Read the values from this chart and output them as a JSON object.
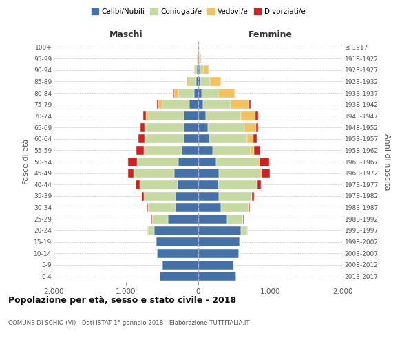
{
  "age_groups": [
    "0-4",
    "5-9",
    "10-14",
    "15-19",
    "20-24",
    "25-29",
    "30-34",
    "35-39",
    "40-44",
    "45-49",
    "50-54",
    "55-59",
    "60-64",
    "65-69",
    "70-74",
    "75-79",
    "80-84",
    "85-89",
    "90-94",
    "95-99",
    "100+"
  ],
  "birth_years": [
    "2013-2017",
    "2008-2012",
    "2003-2007",
    "1998-2002",
    "1993-1997",
    "1988-1992",
    "1983-1987",
    "1978-1982",
    "1973-1977",
    "1968-1972",
    "1963-1967",
    "1958-1962",
    "1953-1957",
    "1948-1952",
    "1943-1947",
    "1938-1942",
    "1933-1937",
    "1928-1932",
    "1923-1927",
    "1918-1922",
    "≤ 1917"
  ],
  "males": {
    "celibi": [
      530,
      500,
      570,
      580,
      610,
      420,
      310,
      310,
      290,
      330,
      280,
      230,
      200,
      200,
      200,
      120,
      60,
      30,
      15,
      5,
      2
    ],
    "coniugati": [
      2,
      2,
      5,
      10,
      90,
      220,
      380,
      440,
      520,
      560,
      560,
      510,
      530,
      520,
      490,
      380,
      220,
      100,
      30,
      8,
      1
    ],
    "vedovi": [
      0,
      0,
      0,
      0,
      2,
      2,
      2,
      2,
      3,
      5,
      5,
      10,
      10,
      20,
      30,
      50,
      50,
      30,
      10,
      2,
      0
    ],
    "divorziati": [
      0,
      0,
      0,
      2,
      5,
      10,
      15,
      30,
      50,
      80,
      130,
      110,
      90,
      60,
      40,
      20,
      10,
      3,
      2,
      0,
      0
    ]
  },
  "females": {
    "nubili": [
      520,
      490,
      560,
      570,
      590,
      400,
      310,
      290,
      280,
      290,
      250,
      200,
      150,
      130,
      100,
      70,
      50,
      30,
      15,
      5,
      2
    ],
    "coniugate": [
      2,
      2,
      5,
      10,
      90,
      220,
      390,
      450,
      530,
      570,
      570,
      520,
      530,
      510,
      490,
      380,
      230,
      130,
      60,
      15,
      2
    ],
    "vedove": [
      0,
      0,
      0,
      0,
      2,
      2,
      3,
      5,
      10,
      20,
      30,
      50,
      80,
      160,
      200,
      250,
      220,
      150,
      70,
      15,
      2
    ],
    "divorziate": [
      0,
      0,
      0,
      2,
      5,
      10,
      15,
      30,
      50,
      110,
      130,
      90,
      50,
      30,
      40,
      25,
      15,
      5,
      5,
      2,
      0
    ]
  },
  "colors": {
    "celibi": "#4472a8",
    "coniugati": "#c5d9a0",
    "vedovi": "#f5c060",
    "divorziati": "#cc2222"
  },
  "xlim": 2000,
  "title": "Popolazione per età, sesso e stato civile - 2018",
  "subtitle": "COMUNE DI SCHIO (VI) - Dati ISTAT 1° gennaio 2018 - Elaborazione TUTTITALIA.IT",
  "ylabel_left": "Fasce di età",
  "ylabel_right": "Anni di nascita",
  "xlabel_maschi": "Maschi",
  "xlabel_femmine": "Femmine"
}
